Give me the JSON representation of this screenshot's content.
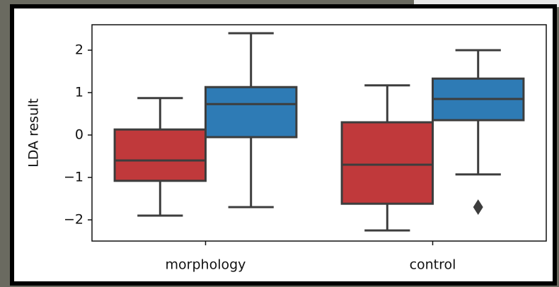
{
  "chart_data": {
    "type": "box",
    "y_label": "LDA result",
    "categories": [
      "morphology",
      "control"
    ],
    "series": [
      {
        "color": "#c0393b",
        "values": [
          {
            "whislo": -1.9,
            "q1": -1.08,
            "med": -0.6,
            "q3": 0.13,
            "whishi": 0.87,
            "fliers": []
          },
          {
            "whislo": -2.25,
            "q1": -1.62,
            "med": -0.7,
            "q3": 0.3,
            "whishi": 1.17,
            "fliers": []
          }
        ]
      },
      {
        "color": "#2e7bb5",
        "values": [
          {
            "whislo": -1.7,
            "q1": -0.05,
            "med": 0.73,
            "q3": 1.13,
            "whishi": 2.4,
            "fliers": []
          },
          {
            "whislo": -0.93,
            "q1": 0.35,
            "med": 0.85,
            "q3": 1.33,
            "whishi": 2.0,
            "fliers": [
              -1.7
            ]
          }
        ]
      }
    ],
    "ylim": [
      -2.5,
      2.6
    ],
    "yticks": [
      {
        "value": -2,
        "label": "−2"
      },
      {
        "value": -1,
        "label": "−1"
      },
      0,
      1,
      2
    ]
  }
}
